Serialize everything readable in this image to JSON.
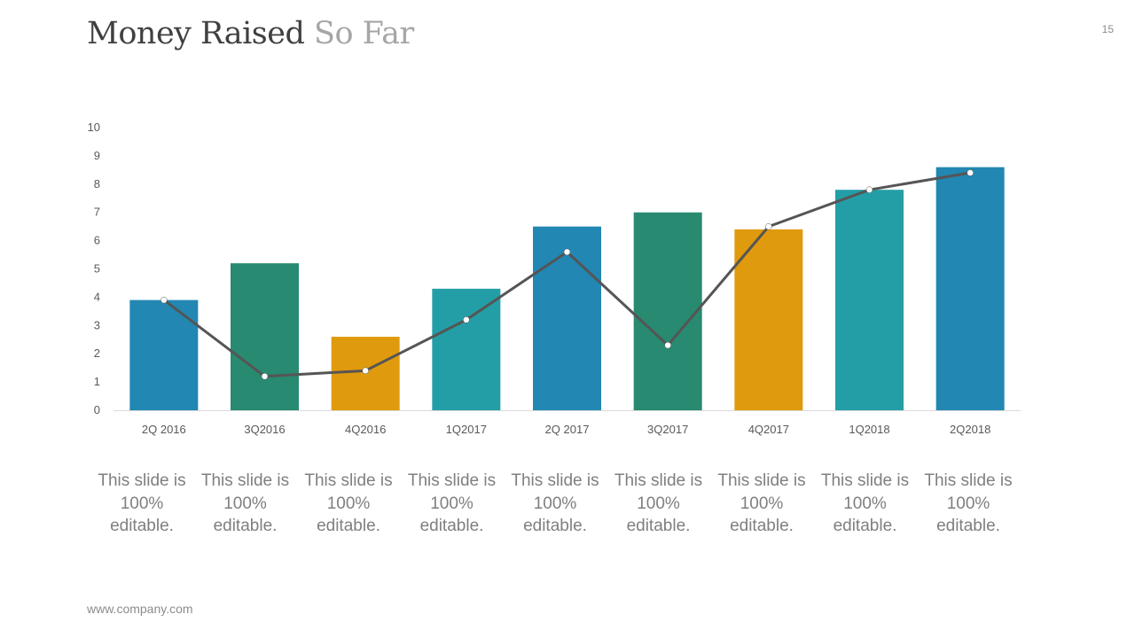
{
  "slide": {
    "title_main": "Money Raised",
    "title_accent": "So Far",
    "page_number": "15",
    "footer": "www.company.com"
  },
  "captions": [
    "This slide is 100% editable.",
    "This slide is 100% editable.",
    "This slide is 100% editable.",
    "This slide is 100% editable.",
    "This slide is 100% editable.",
    "This slide is 100% editable.",
    "This slide is 100% editable.",
    "This slide is 100% editable.",
    "This slide is 100% editable."
  ],
  "chart_data": {
    "type": "bar",
    "title": "",
    "xlabel": "",
    "ylabel": "",
    "ylim": [
      0,
      10
    ],
    "yticks": [
      "0",
      "1",
      "2",
      "3",
      "4",
      "5",
      "6",
      "7",
      "8",
      "9",
      "10"
    ],
    "grid": false,
    "legend": "none",
    "categories": [
      "2Q 2016",
      "3Q2016",
      "4Q2016",
      "1Q2017",
      "2Q 2017",
      "3Q2017",
      "4Q2017",
      "1Q2018",
      "2Q2018"
    ],
    "series": [
      {
        "type": "bar",
        "values": [
          3.9,
          5.2,
          2.6,
          4.3,
          6.5,
          7.0,
          6.4,
          7.8,
          8.6
        ],
        "colors": [
          "#2287b2",
          "#288a70",
          "#e09a0e",
          "#249ea6",
          "#2287b2",
          "#288a70",
          "#e09a0e",
          "#249ea6",
          "#2287b2"
        ]
      },
      {
        "type": "line",
        "values": [
          3.9,
          1.2,
          1.4,
          3.2,
          5.6,
          2.3,
          6.5,
          7.8,
          8.4
        ],
        "color": "#555555"
      }
    ]
  }
}
